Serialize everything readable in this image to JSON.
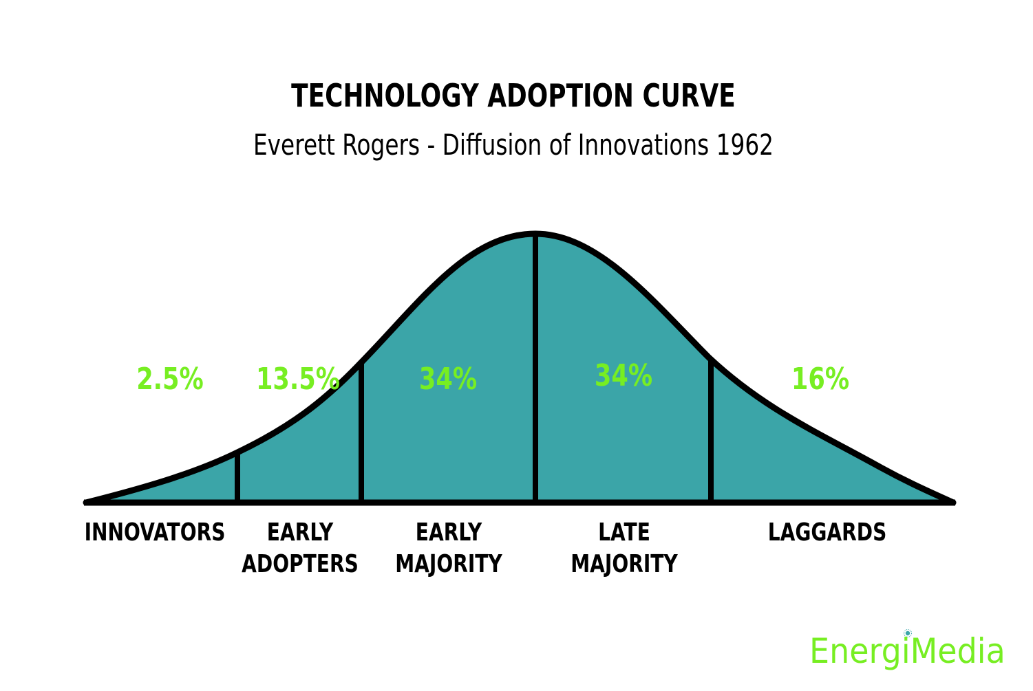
{
  "title": "TECHNOLOGY ADOPTION CURVE",
  "subtitle": "Everett Rogers - Diffusion of Innovations 1962",
  "segments": [
    {
      "percent": "2.5%",
      "label_line1": "INNOVATORS",
      "label_line2": ""
    },
    {
      "percent": "13.5%",
      "label_line1": "EARLY",
      "label_line2": "ADOPTERS"
    },
    {
      "percent": "34%",
      "label_line1": "EARLY",
      "label_line2": "MAJORITY"
    },
    {
      "percent": "34%",
      "label_line1": "LATE",
      "label_line2": "MAJORITY"
    },
    {
      "percent": "16%",
      "label_line1": "LAGGARDS",
      "label_line2": ""
    }
  ],
  "logo": "EnergiMedia",
  "colors": {
    "curve_fill": "#3ba5a8",
    "outline": "#000000",
    "percent_text": "#77ee22",
    "logo": "#77ee22"
  }
}
